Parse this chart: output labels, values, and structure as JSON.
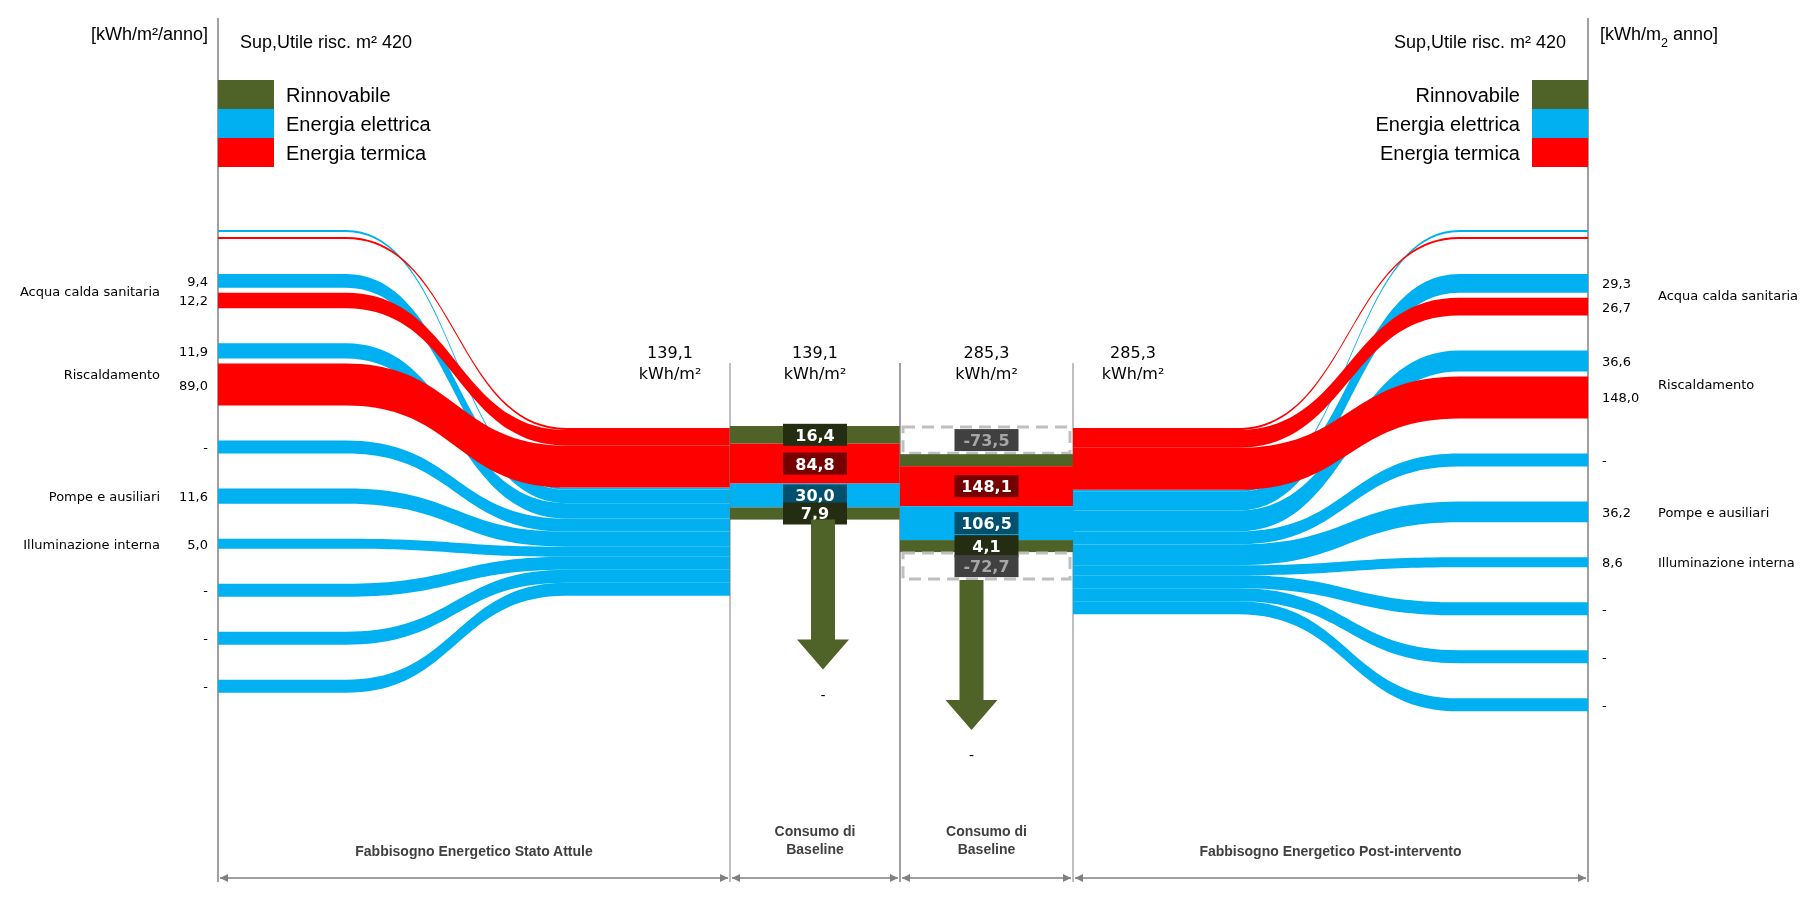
{
  "chart_data": [
    {
      "type": "other",
      "title": "Sup,Utile risc. m² 420",
      "ylabel": "[kWh/m²/anno]",
      "xlabel": "Fabbisogno Energetico Stato Attule",
      "annotations": [
        "139,1 kWh/m²"
      ],
      "legend": "top left",
      "categories": [
        null,
        "Acqua calda sanitaria",
        "Riscaldamento",
        null,
        "Pompe e ausiliari",
        "Illuminazione interna",
        null,
        null,
        null
      ],
      "series": [
        {
          "name": "Rinnovabile",
          "color": "#4f6228",
          "values": [
            null,
            null,
            null,
            null,
            null,
            null,
            null,
            null,
            null
          ],
          "value_labels": [
            null,
            null,
            null,
            null,
            null,
            null,
            null,
            null,
            null
          ]
        },
        {
          "name": "Energia elettrica",
          "color": "#00b0f0",
          "values": [
            null,
            9.4,
            11.9,
            null,
            11.6,
            5.0,
            null,
            null,
            null
          ],
          "value_labels": [
            null,
            "9,4",
            "11,9",
            "-",
            "11,6",
            "5,0",
            "-",
            "-",
            "-"
          ]
        },
        {
          "name": "Energia termica",
          "color": "#ff0000",
          "values": [
            null,
            12.2,
            89.0,
            null,
            null,
            null,
            null,
            null,
            null
          ],
          "value_labels": [
            null,
            "12,2",
            "89,0",
            null,
            null,
            null,
            null,
            null,
            null
          ]
        }
      ]
    },
    {
      "type": "other",
      "xlabel": "Consumo di Baseline",
      "annotations": [
        "139,1 kWh/m²",
        "-"
      ],
      "categories": [
        null,
        null,
        null,
        null
      ],
      "values": [
        16.4,
        84.8,
        30.0,
        7.9
      ],
      "value_labels": [
        "16,4",
        "84,8",
        "30,0",
        "7,9"
      ],
      "colors": [
        "#4f6228",
        "#ff0000",
        "#00b0f0",
        "#4f6228"
      ]
    },
    {
      "type": "other",
      "xlabel": "Consumo di Baseline",
      "annotations": [
        "285,3 kWh/m²",
        "-"
      ],
      "categories": [
        null,
        null,
        null,
        null,
        null,
        null
      ],
      "values": [
        -73.5,
        null,
        148.1,
        106.5,
        4.1,
        -72.7
      ],
      "value_labels": [
        "-73,5",
        null,
        "148,1",
        "106,5",
        "4,1",
        "-72,7"
      ],
      "colors": [
        "#bfbfbf",
        "#4f6228",
        "#ff0000",
        "#00b0f0",
        "#4f6228",
        "#bfbfbf"
      ]
    },
    {
      "type": "other",
      "title": "Sup,Utile risc. m² 420",
      "ylabel": "[kWh/m$_{2}$ anno]",
      "xlabel": "Fabbisogno Energetico Post-intervento",
      "annotations": [
        "285,3 kWh/m²"
      ],
      "legend": "top right",
      "categories": [
        null,
        "Acqua calda sanitaria",
        "Riscaldamento",
        null,
        "Pompe e ausiliari",
        "Illuminazione interna",
        null,
        null,
        null
      ],
      "series": [
        {
          "name": "Rinnovabile",
          "color": "#4f6228",
          "values": [
            null,
            null,
            null,
            null,
            null,
            null,
            null,
            null,
            null
          ],
          "value_labels": [
            null,
            null,
            null,
            null,
            null,
            null,
            null,
            null,
            null
          ]
        },
        {
          "name": "Energia elettrica",
          "color": "#00b0f0",
          "values": [
            null,
            29.3,
            36.6,
            null,
            36.2,
            8.6,
            null,
            null,
            null
          ],
          "value_labels": [
            null,
            "29,3",
            "36,6",
            "-",
            "36,2",
            "8,6",
            "-",
            "-",
            "-"
          ]
        },
        {
          "name": "Energia termica",
          "color": "#ff0000",
          "values": [
            null,
            26.7,
            148.0,
            null,
            null,
            null,
            null,
            null,
            null
          ],
          "value_labels": [
            null,
            "26,7",
            "148,0",
            null,
            null,
            null,
            null,
            null,
            null
          ]
        }
      ]
    }
  ]
}
